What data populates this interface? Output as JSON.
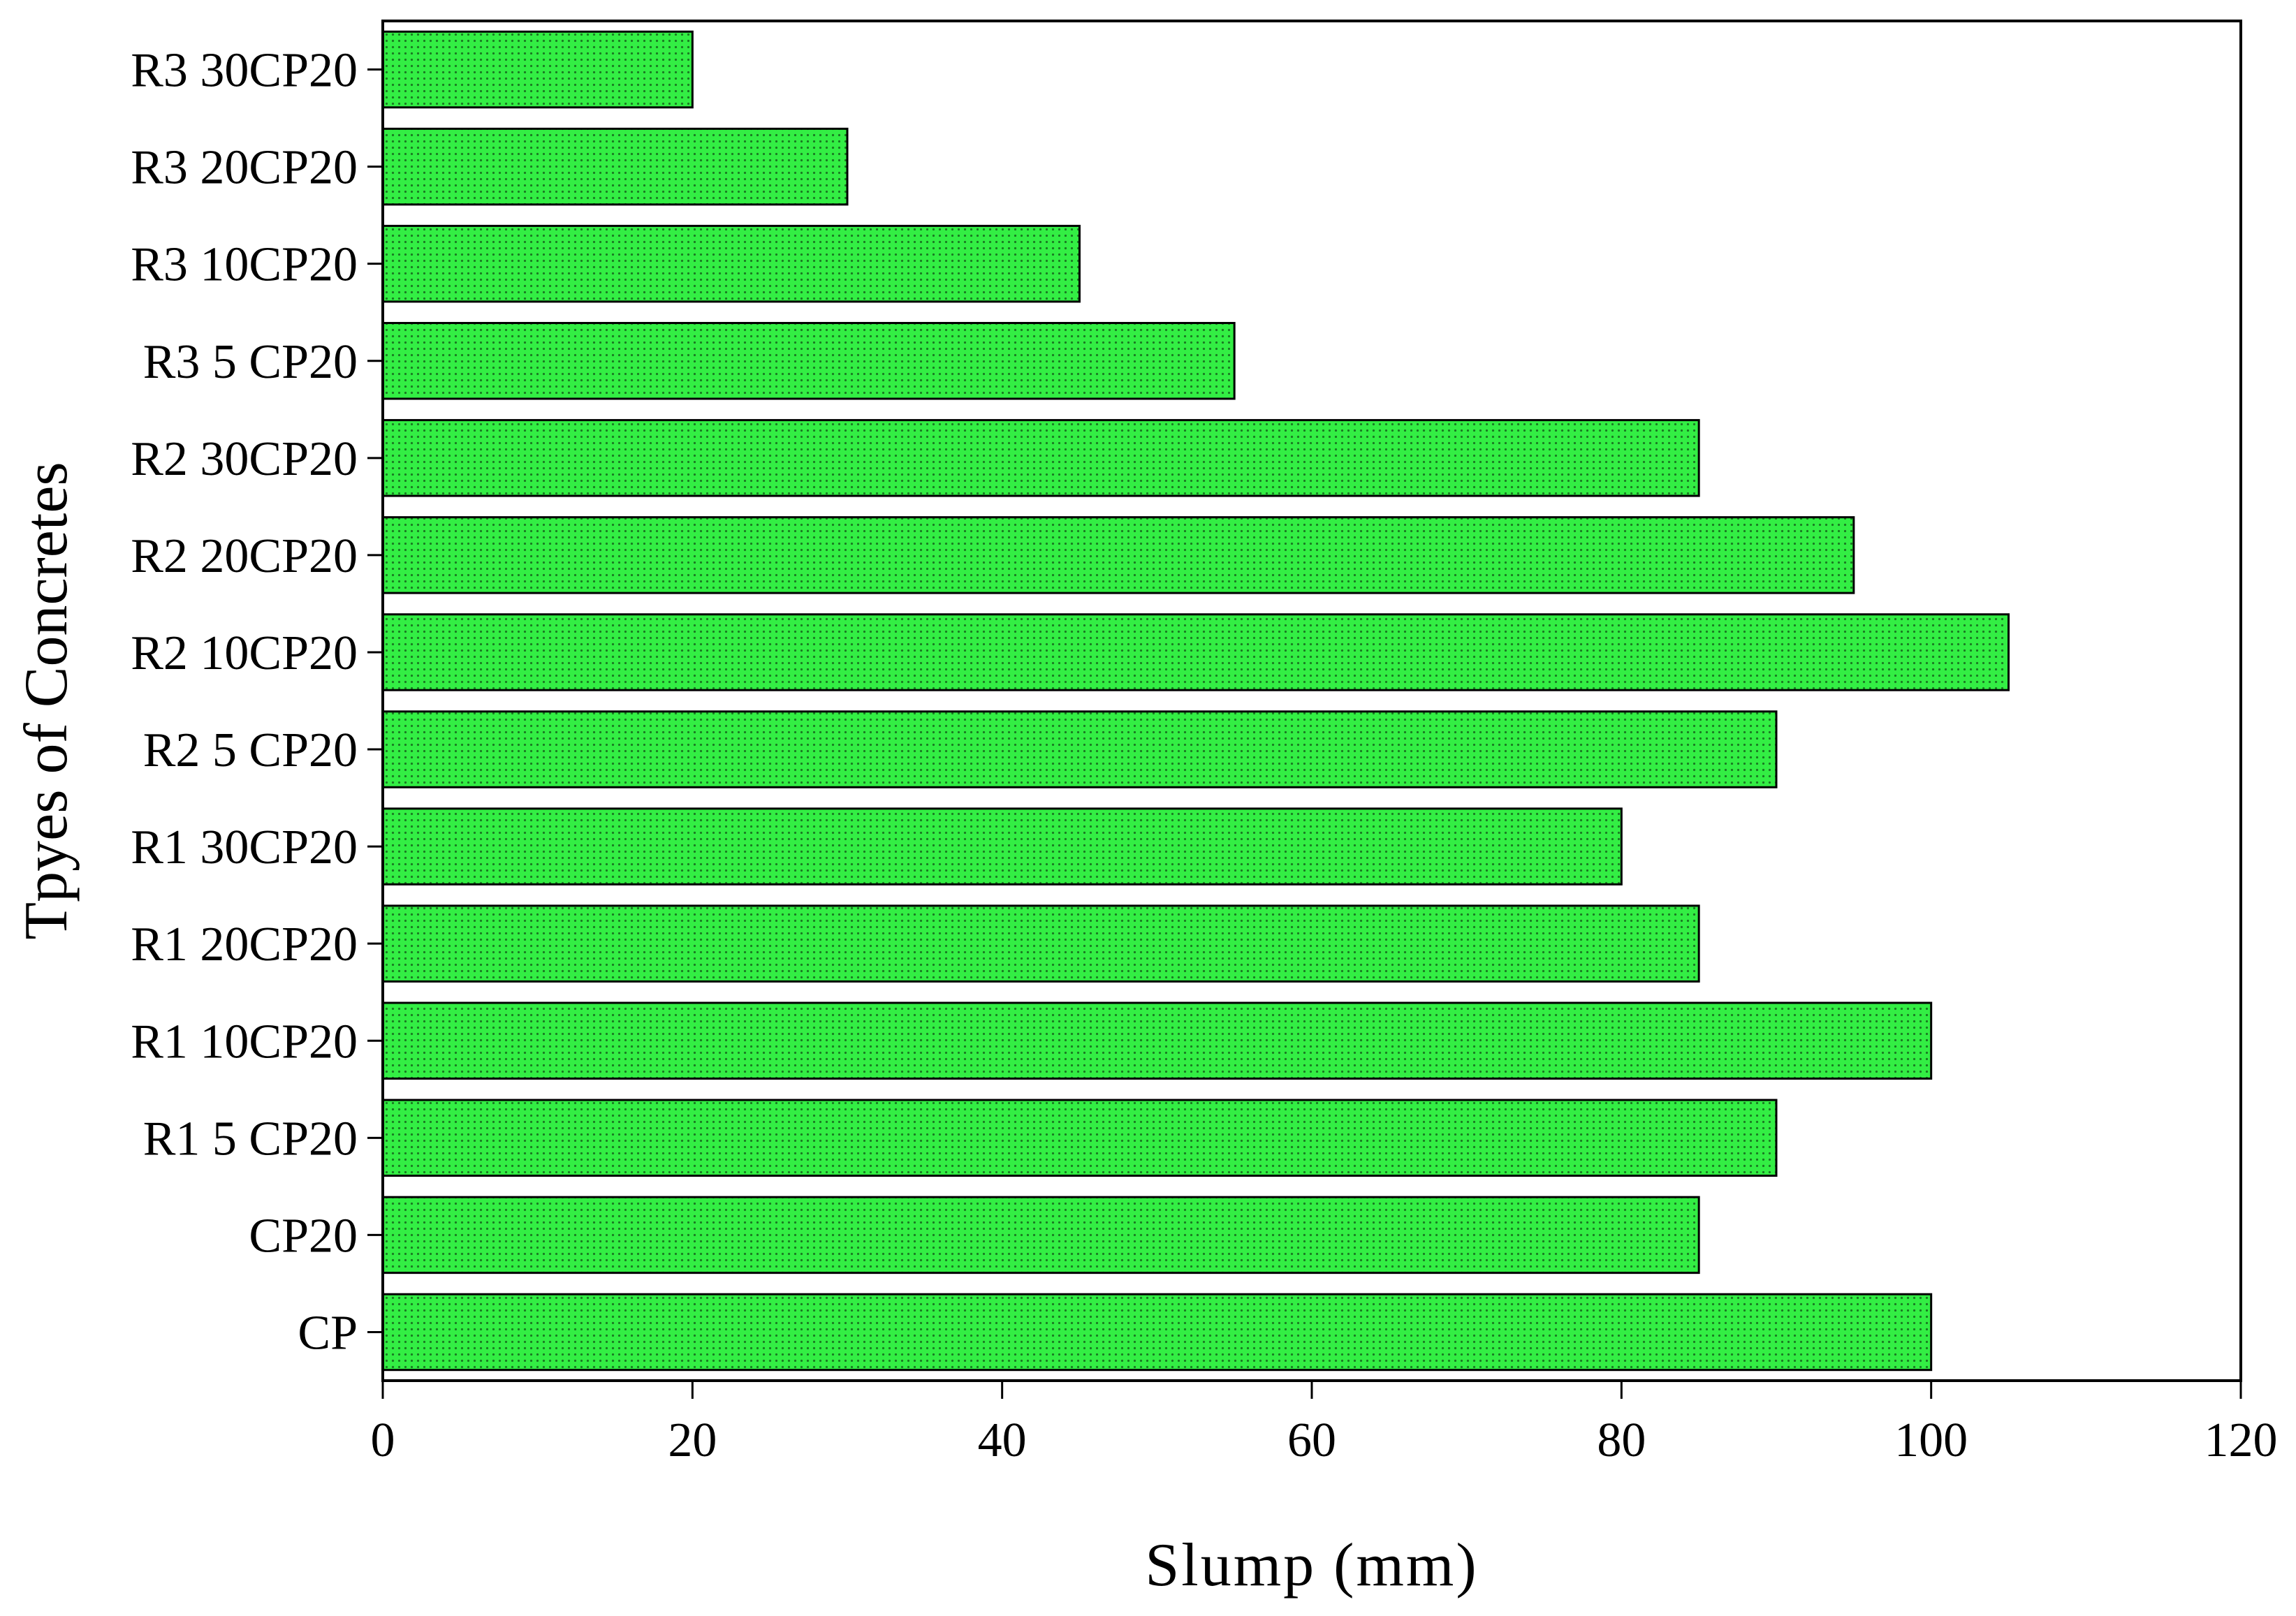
{
  "chart_data": {
    "type": "bar",
    "orientation": "horizontal",
    "categories": [
      "CP",
      "CP20",
      "R1 5 CP20",
      "R1 10CP20",
      "R1 20CP20",
      "R1 30CP20",
      "R2 5 CP20",
      "R2 10CP20",
      "R2 20CP20",
      "R2 30CP20",
      "R3 5 CP20",
      "R3 10CP20",
      "R3 20CP20",
      "R3 30CP20"
    ],
    "values": [
      100,
      85,
      90,
      100,
      85,
      80,
      90,
      105,
      95,
      85,
      55,
      45,
      30,
      20
    ],
    "xlabel": "Slump (mm)",
    "ylabel": "Tpyes of Concretes",
    "xlim": [
      0,
      120
    ],
    "xticks": [
      0,
      20,
      40,
      60,
      80,
      100,
      120
    ],
    "grid": false,
    "legend": "none",
    "bar_color": "#33ee44",
    "bar_pattern": "dotted"
  }
}
